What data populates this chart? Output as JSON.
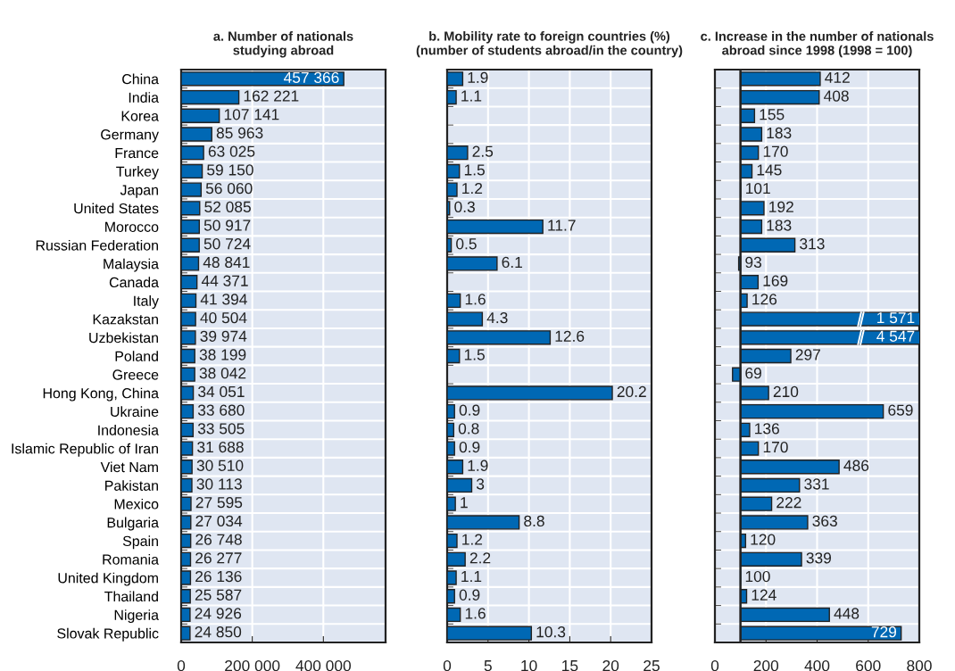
{
  "chart_data": [
    {
      "type": "bar",
      "orientation": "horizontal",
      "title": "a. Number of nationals\nstudying abroad",
      "categories": [
        "China",
        "India",
        "Korea",
        "Germany",
        "France",
        "Turkey",
        "Japan",
        "United States",
        "Morocco",
        "Russian Federation",
        "Malaysia",
        "Canada",
        "Italy",
        "Kazakstan",
        "Uzbekistan",
        "Poland",
        "Greece",
        "Hong Kong, China",
        "Ukraine",
        "Indonesia",
        "Islamic Republic of Iran",
        "Viet Nam",
        "Pakistan",
        "Mexico",
        "Bulgaria",
        "Spain",
        "Romania",
        "United Kingdom",
        "Thailand",
        "Nigeria",
        "Slovak Republic"
      ],
      "values": [
        457366,
        162221,
        107141,
        85963,
        63025,
        59150,
        56060,
        52085,
        50917,
        50724,
        48841,
        44371,
        41394,
        40504,
        39974,
        38199,
        38042,
        34051,
        33680,
        33505,
        31688,
        30510,
        30113,
        27595,
        27034,
        26748,
        26277,
        26136,
        25587,
        24926,
        24850
      ],
      "value_labels": [
        "457 366",
        "162 221",
        "107 141",
        "85 963",
        "63 025",
        "59 150",
        "56 060",
        "52 085",
        "50 917",
        "50 724",
        "48 841",
        "44 371",
        "41 394",
        "40 504",
        "39 974",
        "38 199",
        "38 042",
        "34 051",
        "33 680",
        "33 505",
        "31 688",
        "30 510",
        "30 113",
        "27 595",
        "27 034",
        "26 748",
        "26 277",
        "26 136",
        "25 587",
        "24 926",
        "24 850"
      ],
      "color": "#0068b4",
      "xlim": [
        0,
        575000
      ],
      "xticks": [
        0,
        {
          "value": 200000,
          "label": "200 000"
        },
        {
          "value": 400000,
          "label": "400 000"
        }
      ],
      "grid": true
    },
    {
      "type": "bar",
      "orientation": "horizontal",
      "title": "b. Mobility rate to foreign countries (%)\n(number of students abroad/in the country)",
      "categories": [
        null,
        null,
        null,
        null,
        null,
        null,
        null,
        null,
        null,
        null,
        null,
        null,
        null,
        null,
        null,
        null,
        null,
        null,
        null,
        null,
        null,
        null,
        null,
        null,
        null,
        null,
        null,
        null,
        null,
        null,
        null
      ],
      "values": [
        1.9,
        1.1,
        null,
        null,
        2.5,
        1.5,
        1.2,
        0.3,
        11.7,
        0.5,
        6.1,
        null,
        1.6,
        4.3,
        12.6,
        1.5,
        null,
        20.2,
        0.9,
        0.8,
        0.9,
        1.9,
        3,
        1,
        8.8,
        1.2,
        2.2,
        1.1,
        0.9,
        1.6,
        10.3
      ],
      "data_labels": true,
      "color": "#0068b4",
      "xlim": [
        0,
        25
      ],
      "xticks": [
        0,
        5,
        10,
        15,
        20,
        25
      ],
      "grid": true
    },
    {
      "type": "bar",
      "orientation": "horizontal",
      "title": "c. Increase in the number of nationals\nabroad since 1998 (1998 = 100)",
      "categories": [
        null,
        null,
        null,
        null,
        null,
        null,
        null,
        null,
        null,
        null,
        null,
        null,
        null,
        null,
        null,
        null,
        null,
        null,
        null,
        null,
        null,
        null,
        null,
        null,
        null,
        null,
        null,
        null,
        null,
        null,
        null
      ],
      "base": [
        100,
        100,
        100,
        100,
        100,
        100,
        100,
        100,
        100,
        100,
        100,
        100,
        100,
        100,
        100,
        100,
        100,
        100,
        100,
        100,
        100,
        100,
        100,
        100,
        100,
        100,
        100,
        100,
        100,
        100,
        100
      ],
      "values": [
        312,
        308,
        55,
        83,
        70,
        45,
        1,
        92,
        83,
        213,
        -7,
        69,
        26,
        1471,
        4447,
        197,
        -31,
        110,
        559,
        36,
        70,
        386,
        231,
        122,
        263,
        20,
        239,
        0,
        24,
        348,
        629
      ],
      "value_labels": [
        "412",
        "408",
        "155",
        "183",
        "170",
        "145",
        "101",
        "192",
        "183",
        "313",
        "93",
        "169",
        "126",
        "1 571",
        "4 547",
        "297",
        "69",
        "210",
        "659",
        "136",
        "170",
        "486",
        "331",
        "222",
        "363",
        "120",
        "339",
        "100",
        "124",
        "448",
        "729"
      ],
      "color": "#0068b4",
      "xlim": [
        0,
        800
      ],
      "xticks": [
        0,
        200,
        400,
        600,
        800
      ],
      "ref_lines": [
        {
          "axis": "x",
          "value": 100,
          "color": "#222222"
        }
      ],
      "grid": true
    }
  ]
}
